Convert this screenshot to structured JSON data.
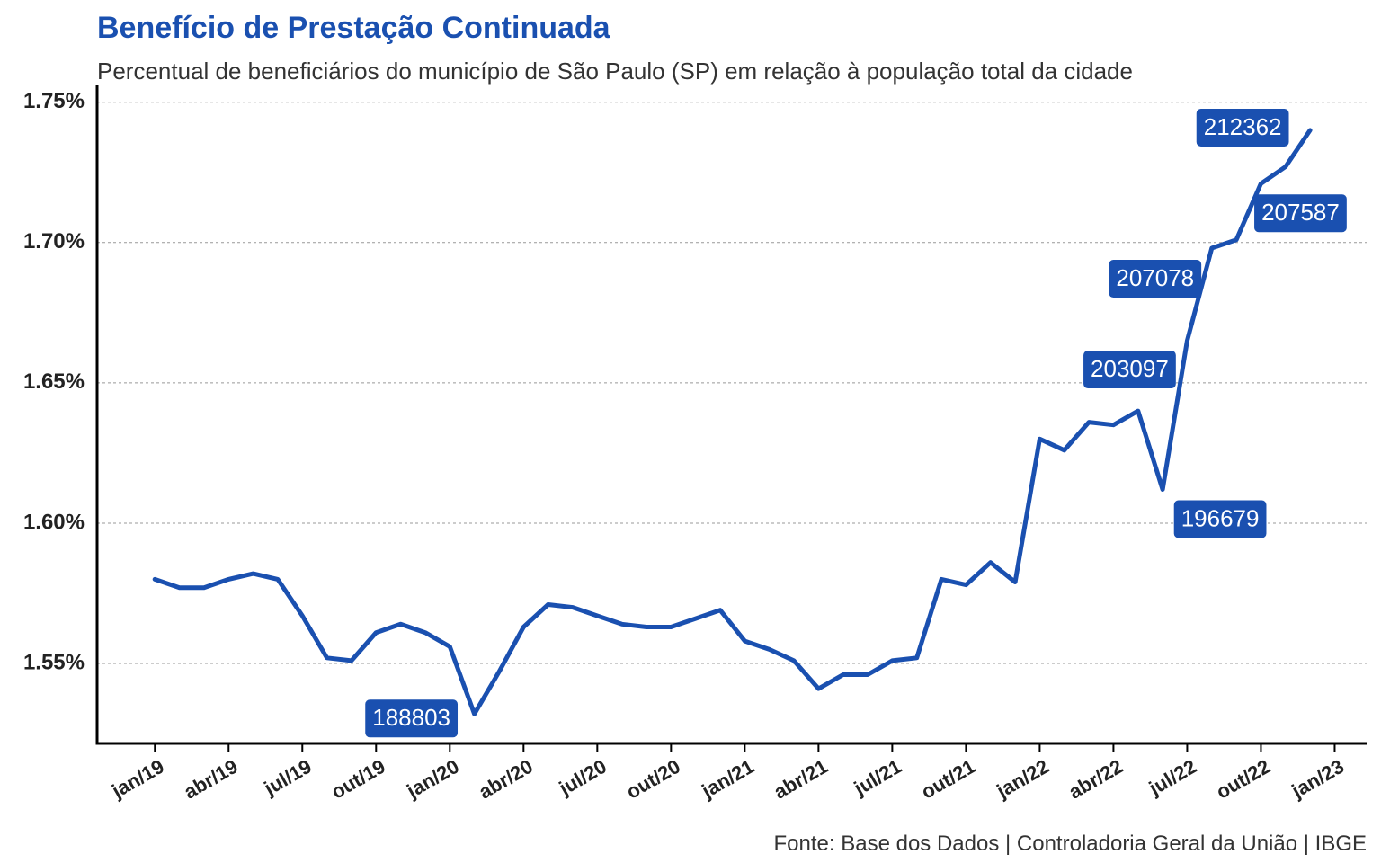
{
  "chart_data": {
    "type": "line",
    "title": "Benefício de Prestação Continuada",
    "subtitle": "Percentual de beneficiários do município de São Paulo (SP) em relação à população total da cidade",
    "source": "Fonte: Base dos Dados | Controladoria Geral da União | IBGE",
    "color": "#1a50b0",
    "grid": true,
    "values": [
      1.58,
      1.577,
      1.577,
      1.58,
      1.582,
      1.58,
      1.567,
      1.552,
      1.551,
      1.561,
      1.564,
      1.561,
      1.556,
      1.532,
      1.547,
      1.563,
      1.571,
      1.57,
      1.567,
      1.564,
      1.563,
      1.563,
      1.566,
      1.569,
      1.558,
      1.555,
      1.551,
      1.541,
      1.546,
      1.546,
      1.551,
      1.552,
      1.58,
      1.578,
      1.586,
      1.579,
      1.63,
      1.626,
      1.636,
      1.635,
      1.64,
      1.612,
      1.665,
      1.698,
      1.701,
      1.721,
      1.727,
      1.74
    ],
    "xlim": [
      -2.35,
      49.3
    ],
    "xticks": [
      {
        "value": 0,
        "label": "jan/19"
      },
      {
        "value": 3,
        "label": "abr/19"
      },
      {
        "value": 6,
        "label": "jul/19"
      },
      {
        "value": 9,
        "label": "out/19"
      },
      {
        "value": 12,
        "label": "jan/20"
      },
      {
        "value": 15,
        "label": "abr/20"
      },
      {
        "value": 18,
        "label": "jul/20"
      },
      {
        "value": 21,
        "label": "out/20"
      },
      {
        "value": 24,
        "label": "jan/21"
      },
      {
        "value": 27,
        "label": "abr/21"
      },
      {
        "value": 30,
        "label": "jul/21"
      },
      {
        "value": 33,
        "label": "out/21"
      },
      {
        "value": 36,
        "label": "jan/22"
      },
      {
        "value": 39,
        "label": "abr/22"
      },
      {
        "value": 42,
        "label": "jul/22"
      },
      {
        "value": 45,
        "label": "out/22"
      },
      {
        "value": 48,
        "label": "jan/23"
      }
    ],
    "ylim": [
      1.5215,
      1.756
    ],
    "yticks": [
      {
        "value": 1.55,
        "label": "1.55%"
      },
      {
        "value": 1.6,
        "label": "1.60%"
      },
      {
        "value": 1.65,
        "label": "1.65%"
      },
      {
        "value": 1.7,
        "label": "1.70%"
      },
      {
        "value": 1.75,
        "label": "1.75%"
      }
    ],
    "annotations": [
      {
        "x": 13,
        "text": "188803"
      },
      {
        "x": 41,
        "text": "196679"
      },
      {
        "x": 42,
        "text": "203097"
      },
      {
        "x": 43,
        "text": "207078"
      },
      {
        "x": 45,
        "text": "207587"
      },
      {
        "x": 47,
        "text": "212362"
      }
    ]
  }
}
